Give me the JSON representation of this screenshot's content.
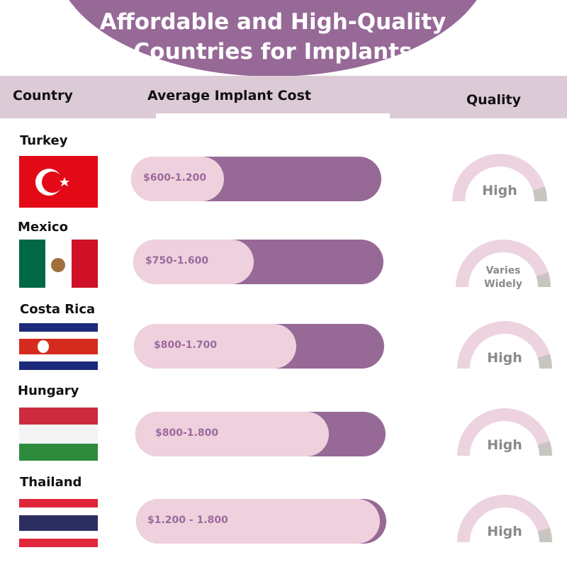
{
  "header": {
    "title": "Affordable and High-Quality Countries for Implants"
  },
  "table": {
    "columns": [
      "Country",
      "Average Implant Cost",
      "Quality"
    ],
    "rows": [
      [
        "Turkey",
        "$600-1.200",
        "High"
      ],
      [
        "Mexico",
        "$750-1.600",
        "Varies Widely"
      ],
      [
        "Costa Rica",
        "$800-1.700",
        "High"
      ],
      [
        "Hungary",
        "$800-1.800",
        "High"
      ],
      [
        "Thailand",
        "$1.200 - 1.800",
        "High"
      ]
    ]
  }
}
